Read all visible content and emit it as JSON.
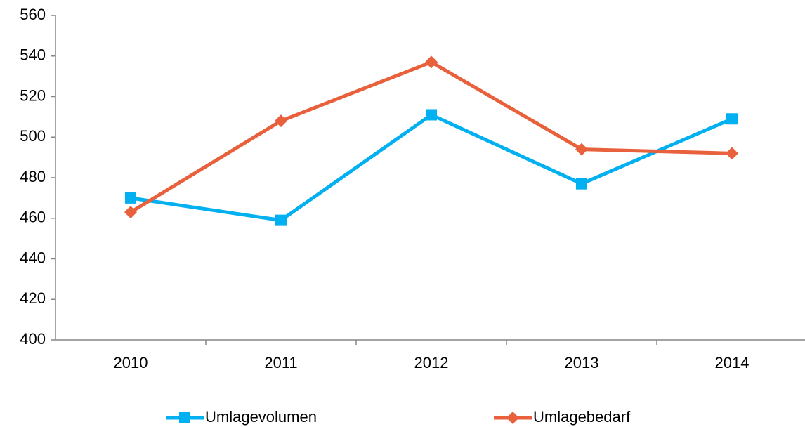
{
  "chart_data": {
    "type": "line",
    "categories": [
      "2010",
      "2011",
      "2012",
      "2013",
      "2014"
    ],
    "series": [
      {
        "name": "Umlagevolumen",
        "color": "#00b0f0",
        "marker": "square",
        "values": [
          470,
          459,
          511,
          477,
          509
        ]
      },
      {
        "name": "Umlagebedarf",
        "color": "#e8603c",
        "marker": "diamond",
        "values": [
          463,
          508,
          537,
          494,
          492
        ]
      }
    ],
    "ylim": [
      400,
      560
    ],
    "yticks": [
      400,
      420,
      440,
      460,
      480,
      500,
      520,
      540,
      560
    ],
    "grid": false,
    "legend": "bottom"
  }
}
